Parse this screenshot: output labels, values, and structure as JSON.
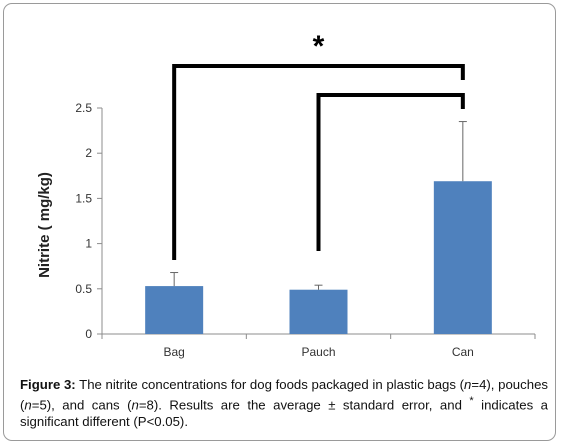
{
  "chart_data": {
    "type": "bar",
    "categories": [
      "Bag",
      "Pauch",
      "Can"
    ],
    "values": [
      0.53,
      0.49,
      1.69
    ],
    "error_bars_upper": [
      0.15,
      0.05,
      0.66
    ],
    "ylabel": "Nitrite ( mg/kg)",
    "ylim": [
      0,
      2.5
    ],
    "yticks": [
      "0",
      "0.5",
      "1",
      "1.5",
      "2",
      "2.5"
    ],
    "bar_color": "#4f81bd",
    "grid": false,
    "legend": false,
    "significance": {
      "symbol": "*",
      "brackets": [
        {
          "from": "Bag",
          "to": "Can"
        },
        {
          "from": "Pauch",
          "to": "Can"
        }
      ]
    }
  },
  "caption": {
    "label": "Figure 3:",
    "text_1": " The nitrite concentrations for dog foods packaged in plastic bags (",
    "n1": "n",
    "text_2": "=4), pouches (",
    "n2": "n",
    "text_3": "=5), and cans (",
    "n3": "n",
    "text_4": "=8). Results are the average ± standard error, and ",
    "star": "*",
    "text_5": " indicates a significant different (P<0.05)."
  }
}
